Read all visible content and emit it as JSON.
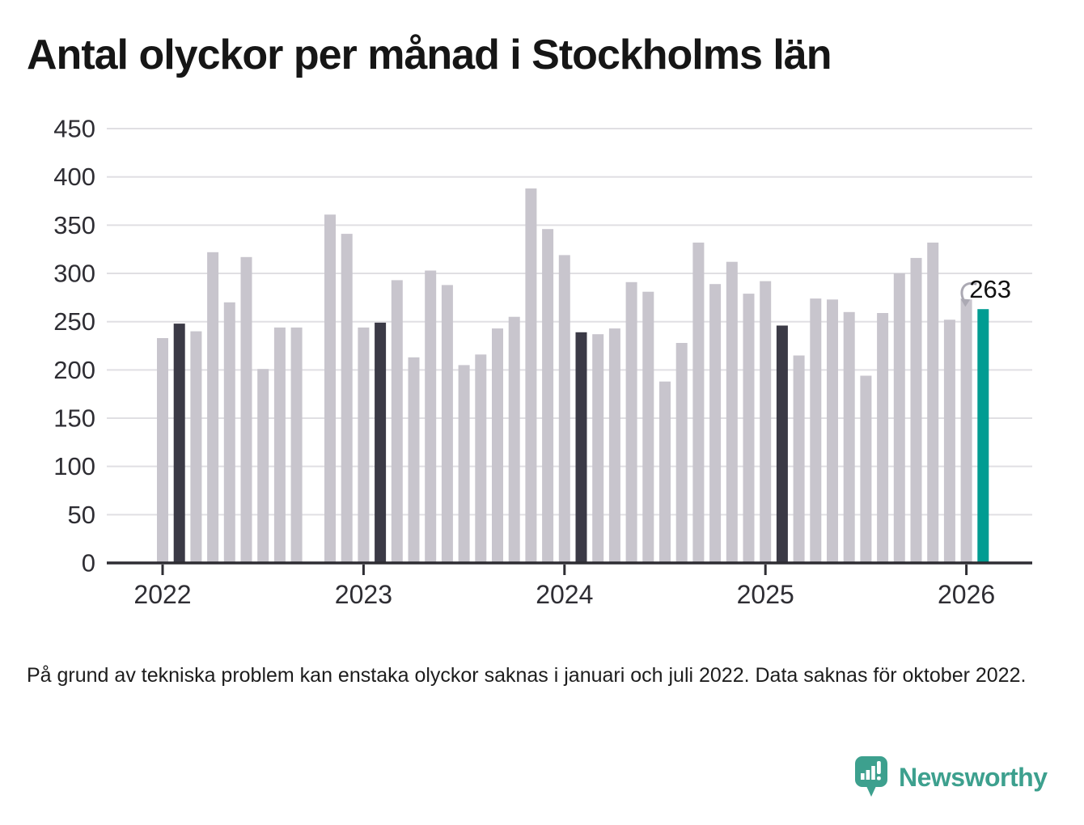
{
  "title": "Antal olyckor per månad i Stockholms län",
  "footnote": {
    "text": "På grund av tekniska problem kan enstaka olyckor saknas i januari och juli 2022. Data saknas för oktober 2022."
  },
  "annotation": {
    "label": "263"
  },
  "brand": {
    "name": "Newsworthy"
  },
  "colors": {
    "bar": "#c8c5cd",
    "bar_reference": "#3b3a46",
    "bar_current": "#009c92",
    "grid": "#e0dfe3",
    "axis": "#2e2d33",
    "axis_text": "#2e2d33",
    "annotation_text": "#111111",
    "arrow": "#aba9b3",
    "brand_teal": "#3da08e"
  },
  "chart_data": {
    "type": "bar",
    "title": "Antal olyckor per månad i Stockholms län",
    "xlabel": "",
    "ylabel": "",
    "ylim": [
      0,
      450
    ],
    "grid": true,
    "legend": "none",
    "yticks": [
      0,
      50,
      100,
      150,
      200,
      250,
      300,
      350,
      400,
      450
    ],
    "x_year_ticks": [
      {
        "label": "2022",
        "month_index": 0
      },
      {
        "label": "2023",
        "month_index": 12
      },
      {
        "label": "2024",
        "month_index": 24
      },
      {
        "label": "2025",
        "month_index": 36
      },
      {
        "label": "2026",
        "month_index": 48
      }
    ],
    "months": [
      {
        "m": "2022-01",
        "v": 233
      },
      {
        "m": "2022-02",
        "v": 248,
        "role": "reference"
      },
      {
        "m": "2022-03",
        "v": 240
      },
      {
        "m": "2022-04",
        "v": 322
      },
      {
        "m": "2022-05",
        "v": 270
      },
      {
        "m": "2022-06",
        "v": 317
      },
      {
        "m": "2022-07",
        "v": 201
      },
      {
        "m": "2022-08",
        "v": 244
      },
      {
        "m": "2022-09",
        "v": 244
      },
      {
        "m": "2022-10",
        "v": null
      },
      {
        "m": "2022-11",
        "v": 361
      },
      {
        "m": "2022-12",
        "v": 341
      },
      {
        "m": "2023-01",
        "v": 244
      },
      {
        "m": "2023-02",
        "v": 249,
        "role": "reference"
      },
      {
        "m": "2023-03",
        "v": 293
      },
      {
        "m": "2023-04",
        "v": 213
      },
      {
        "m": "2023-05",
        "v": 303
      },
      {
        "m": "2023-06",
        "v": 288
      },
      {
        "m": "2023-07",
        "v": 205
      },
      {
        "m": "2023-08",
        "v": 216
      },
      {
        "m": "2023-09",
        "v": 243
      },
      {
        "m": "2023-10",
        "v": 255
      },
      {
        "m": "2023-11",
        "v": 388
      },
      {
        "m": "2023-12",
        "v": 346
      },
      {
        "m": "2024-01",
        "v": 319
      },
      {
        "m": "2024-02",
        "v": 239,
        "role": "reference"
      },
      {
        "m": "2024-03",
        "v": 237
      },
      {
        "m": "2024-04",
        "v": 243
      },
      {
        "m": "2024-05",
        "v": 291
      },
      {
        "m": "2024-06",
        "v": 281
      },
      {
        "m": "2024-07",
        "v": 188
      },
      {
        "m": "2024-08",
        "v": 228
      },
      {
        "m": "2024-09",
        "v": 332
      },
      {
        "m": "2024-10",
        "v": 289
      },
      {
        "m": "2024-11",
        "v": 312
      },
      {
        "m": "2024-12",
        "v": 279
      },
      {
        "m": "2025-01",
        "v": 292
      },
      {
        "m": "2025-02",
        "v": 246,
        "role": "reference"
      },
      {
        "m": "2025-03",
        "v": 215
      },
      {
        "m": "2025-04",
        "v": 274
      },
      {
        "m": "2025-05",
        "v": 273
      },
      {
        "m": "2025-06",
        "v": 260
      },
      {
        "m": "2025-07",
        "v": 194
      },
      {
        "m": "2025-08",
        "v": 259
      },
      {
        "m": "2025-09",
        "v": 300
      },
      {
        "m": "2025-10",
        "v": 316
      },
      {
        "m": "2025-11",
        "v": 332
      },
      {
        "m": "2025-12",
        "v": 252
      },
      {
        "m": "2026-01",
        "v": 273
      },
      {
        "m": "2026-02",
        "v": 263,
        "role": "current"
      }
    ]
  }
}
